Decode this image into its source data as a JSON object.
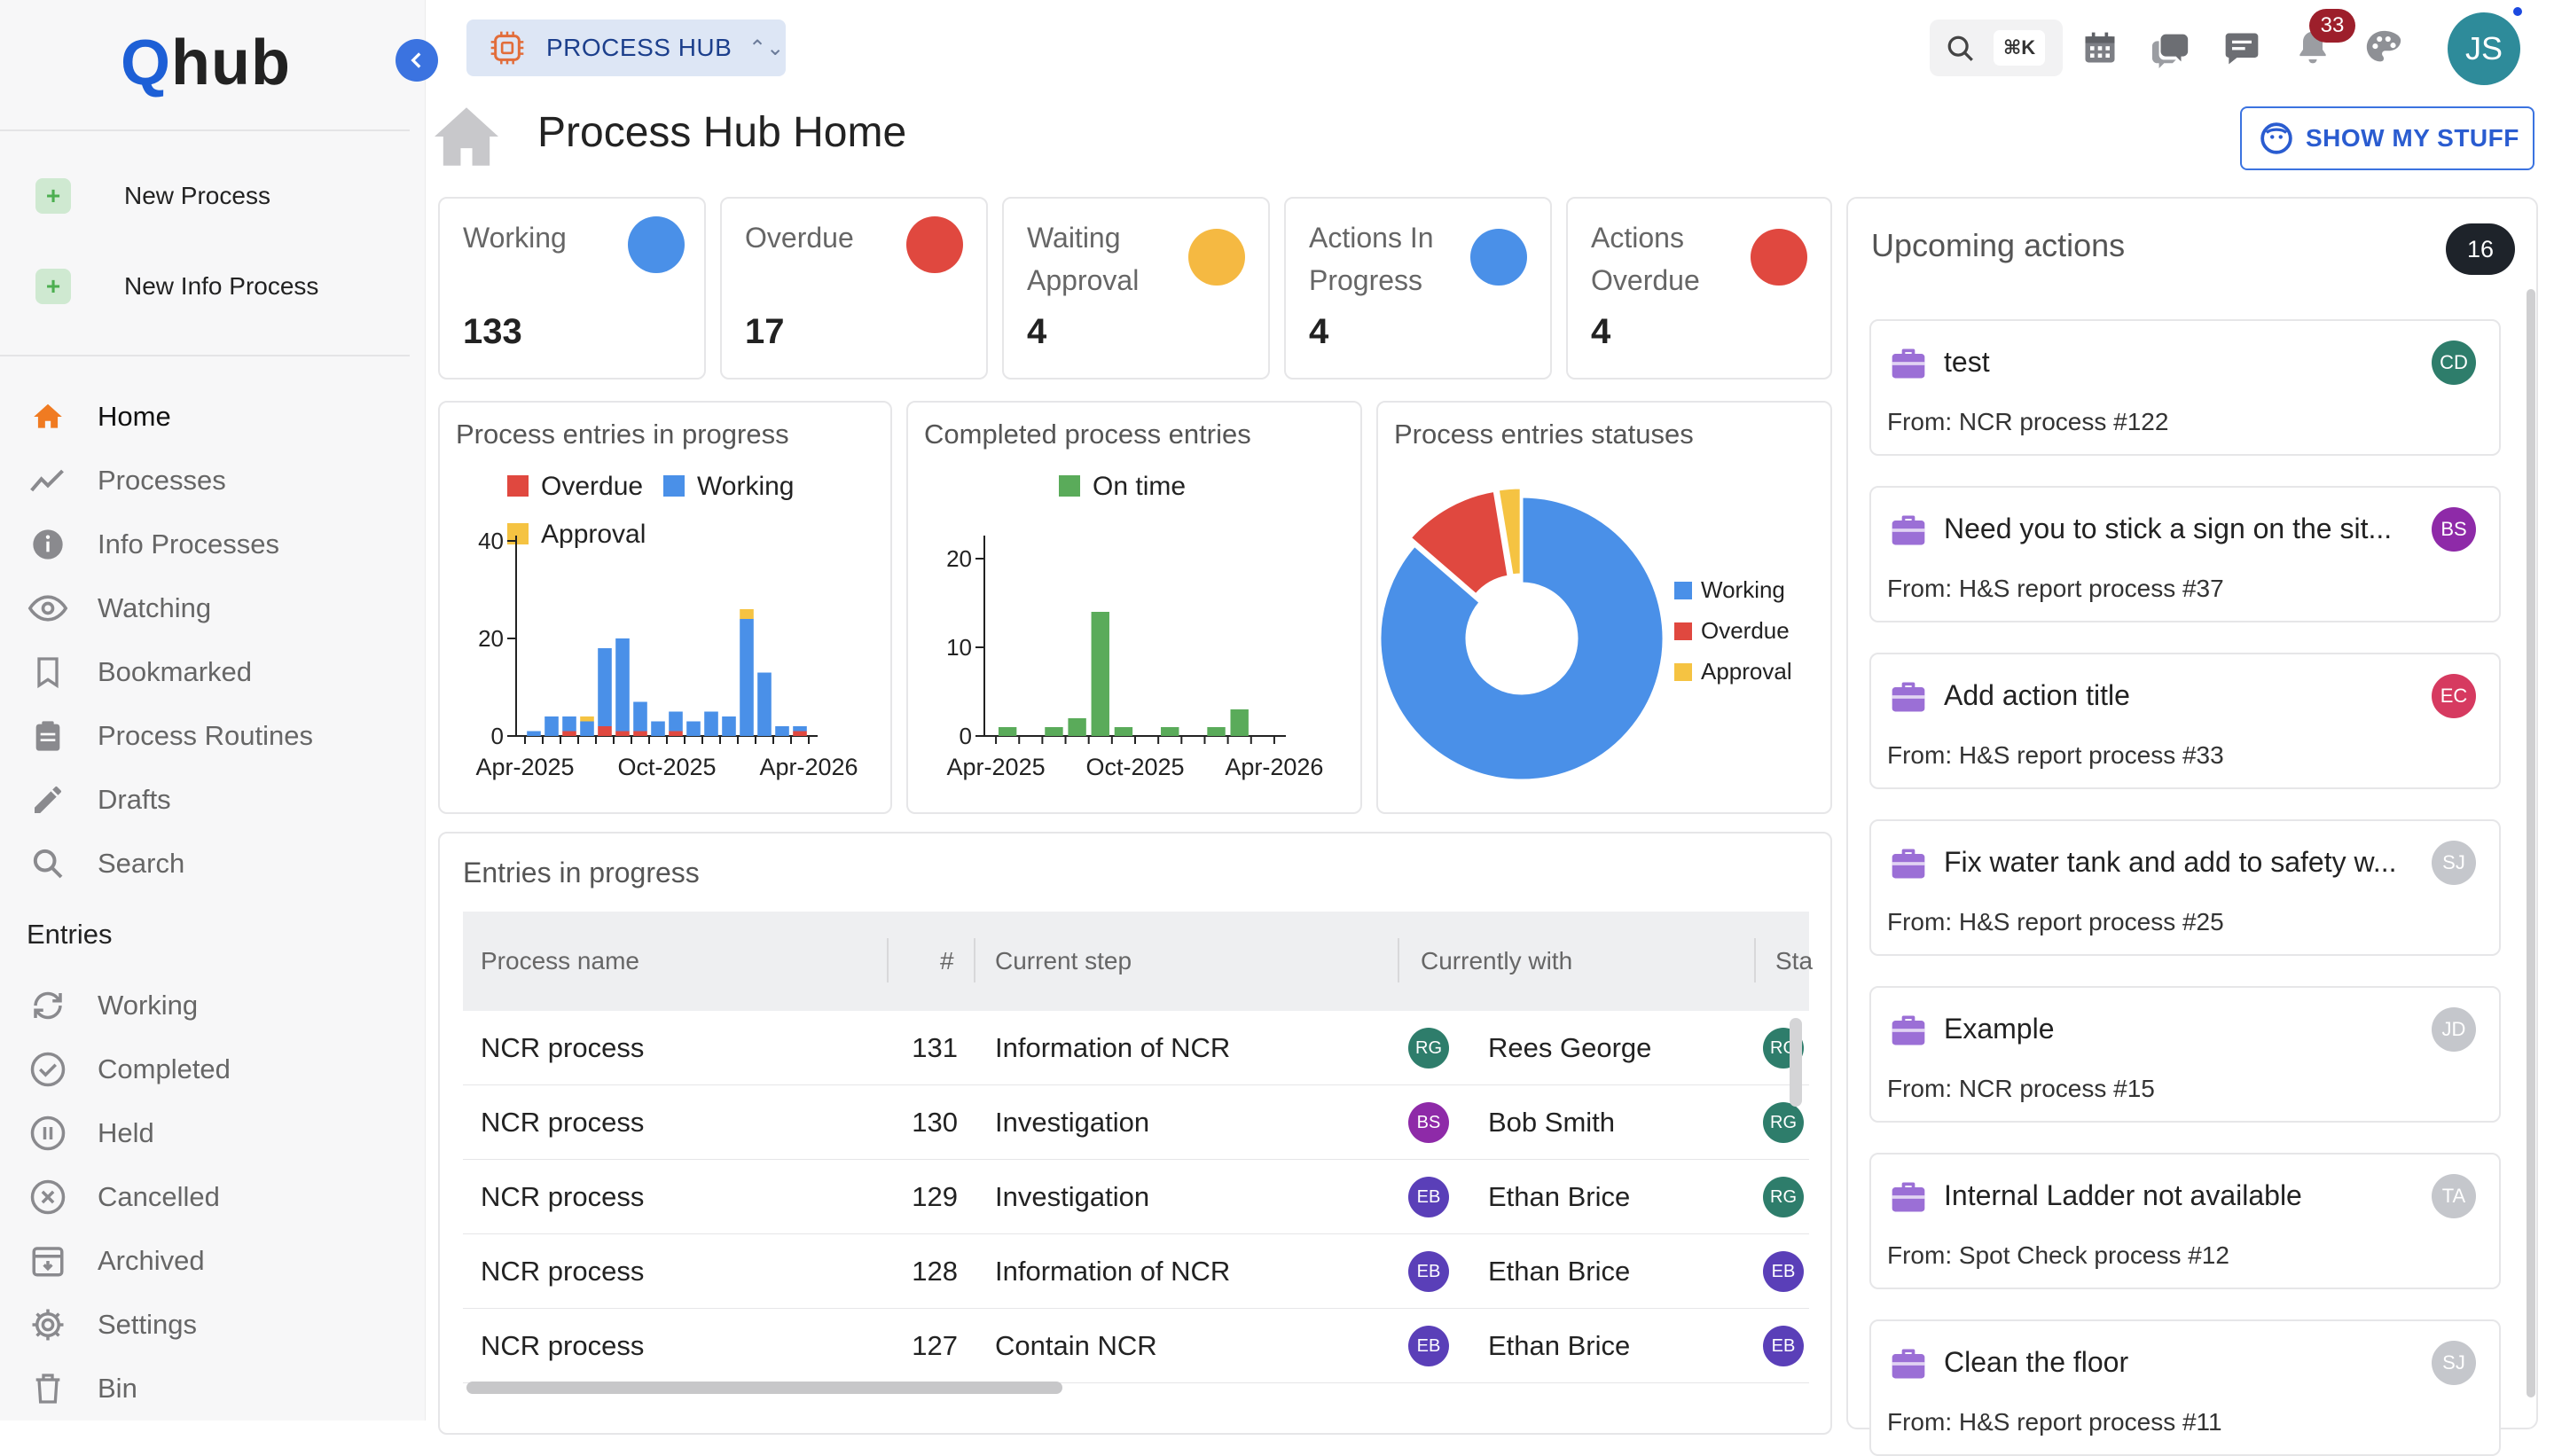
{
  "brand": {
    "logo_q": "Q",
    "logo_rest": "hub"
  },
  "sidebar": {
    "new_items": [
      {
        "label": "New Process"
      },
      {
        "label": "New Info Process"
      }
    ],
    "nav": [
      {
        "label": "Home",
        "icon": "home-icon"
      },
      {
        "label": "Processes",
        "icon": "trend-icon"
      },
      {
        "label": "Info Processes",
        "icon": "info-icon"
      },
      {
        "label": "Watching",
        "icon": "eye-icon"
      },
      {
        "label": "Bookmarked",
        "icon": "bookmark-icon"
      },
      {
        "label": "Process Routines",
        "icon": "clipboard-icon"
      },
      {
        "label": "Drafts",
        "icon": "pencil-icon"
      },
      {
        "label": "Search",
        "icon": "search-icon"
      }
    ],
    "entries_title": "Entries",
    "entries": [
      {
        "label": "Working",
        "icon": "sync-icon"
      },
      {
        "label": "Completed",
        "icon": "check-circle-icon"
      },
      {
        "label": "Held",
        "icon": "pause-circle-icon"
      },
      {
        "label": "Cancelled",
        "icon": "cancel-circle-icon"
      },
      {
        "label": "Archived",
        "icon": "archive-icon"
      },
      {
        "label": "Settings",
        "icon": "gear-icon"
      },
      {
        "label": "Bin",
        "icon": "trash-icon"
      }
    ]
  },
  "topbar": {
    "hub_label": "PROCESS HUB",
    "search_shortcut": "⌘K",
    "notification_count": "33",
    "user_initials": "JS"
  },
  "page": {
    "title": "Process Hub Home",
    "show_my_stuff": "SHOW MY STUFF"
  },
  "stats": [
    {
      "label": "Working",
      "value": "133",
      "color": "#4a90e8"
    },
    {
      "label": "Overdue",
      "value": "17",
      "color": "#e0483f"
    },
    {
      "label": "Waiting Approval",
      "value": "4",
      "color": "#f5b942"
    },
    {
      "label": "Actions In Progress",
      "value": "4",
      "color": "#4a90e8"
    },
    {
      "label": "Actions Overdue",
      "value": "4",
      "color": "#e0483f"
    }
  ],
  "chart_data": [
    {
      "type": "bar",
      "title": "Process entries in progress",
      "stacked": true,
      "legend": [
        "Overdue",
        "Working",
        "Approval"
      ],
      "colors": [
        "#e0483f",
        "#4a90e8",
        "#f5c342"
      ],
      "x_tick_labels": [
        "Apr-2025",
        "Oct-2025",
        "Apr-2026"
      ],
      "y_ticks": [
        0,
        20,
        40
      ],
      "ylim": [
        0,
        40
      ],
      "series": [
        {
          "name": "Overdue",
          "values": [
            0,
            0,
            1,
            0,
            2,
            1,
            1,
            0,
            1,
            0,
            0,
            0,
            0,
            0,
            0,
            1
          ]
        },
        {
          "name": "Working",
          "values": [
            1,
            4,
            3,
            3,
            16,
            19,
            6,
            3,
            4,
            3,
            5,
            4,
            24,
            13,
            2,
            1
          ]
        },
        {
          "name": "Approval",
          "values": [
            0,
            0,
            0,
            1,
            0,
            0,
            0,
            0,
            0,
            0,
            0,
            0,
            2,
            0,
            0,
            0
          ]
        }
      ]
    },
    {
      "type": "bar",
      "title": "Completed process entries",
      "legend": [
        "On time"
      ],
      "colors": [
        "#5aab5a"
      ],
      "x_tick_labels": [
        "Apr-2025",
        "Oct-2025",
        "Apr-2026"
      ],
      "y_ticks": [
        0,
        10,
        20
      ],
      "ylim": [
        0,
        22
      ],
      "series": [
        {
          "name": "On time",
          "values": [
            1,
            0,
            1,
            2,
            14,
            1,
            0,
            1,
            0,
            1,
            3,
            0
          ]
        }
      ]
    },
    {
      "type": "pie",
      "title": "Process entries statuses",
      "donut": true,
      "categories": [
        "Working",
        "Overdue",
        "Approval"
      ],
      "values": [
        133,
        17,
        4
      ],
      "colors": [
        "#4a90e8",
        "#e0483f",
        "#f5c342"
      ]
    }
  ],
  "upcoming": {
    "title": "Upcoming actions",
    "count": "16",
    "items": [
      {
        "title": "test",
        "from": "From: NCR process #122",
        "initials": "CD",
        "color": "#2e7d6b"
      },
      {
        "title": "Need you to stick a sign on the sit...",
        "from": "From: H&S report process #37",
        "initials": "BS",
        "color": "#8e2aa8"
      },
      {
        "title": "Add action title",
        "from": "From: H&S report process #33",
        "initials": "EC",
        "color": "#d63a60"
      },
      {
        "title": "Fix water tank and add to safety w...",
        "from": "From: H&S report process #25",
        "initials": "SJ",
        "color": "#c5c7cc"
      },
      {
        "title": "Example",
        "from": "From: NCR process #15",
        "initials": "JD",
        "color": "#c5c7cc"
      },
      {
        "title": "Internal Ladder not available",
        "from": "From: Spot Check process #12",
        "initials": "TA",
        "color": "#c5c7cc"
      },
      {
        "title": "Clean the floor",
        "from": "From: H&S report process #11",
        "initials": "SJ",
        "color": "#c5c7cc"
      }
    ]
  },
  "entries_table": {
    "title": "Entries in progress",
    "columns": [
      "Process name",
      "#",
      "Current step",
      "Currently with",
      "Sta"
    ],
    "rows": [
      {
        "name": "NCR process",
        "num": "131",
        "step": "Information of NCR",
        "with_initials": "RG",
        "with_name": "Rees George",
        "with_color": "#2e7d6b",
        "status_initials": "RG",
        "status_color": "#2e7d6b"
      },
      {
        "name": "NCR process",
        "num": "130",
        "step": "Investigation",
        "with_initials": "BS",
        "with_name": "Bob Smith",
        "with_color": "#8e2aa8",
        "status_initials": "RG",
        "status_color": "#2e7d6b"
      },
      {
        "name": "NCR process",
        "num": "129",
        "step": "Investigation",
        "with_initials": "EB",
        "with_name": "Ethan Brice",
        "with_color": "#5a3fb8",
        "status_initials": "RG",
        "status_color": "#2e7d6b"
      },
      {
        "name": "NCR process",
        "num": "128",
        "step": "Information of NCR",
        "with_initials": "EB",
        "with_name": "Ethan Brice",
        "with_color": "#5a3fb8",
        "status_initials": "EB",
        "status_color": "#5a3fb8"
      },
      {
        "name": "NCR process",
        "num": "127",
        "step": "Contain NCR",
        "with_initials": "EB",
        "with_name": "Ethan Brice",
        "with_color": "#5a3fb8",
        "status_initials": "EB",
        "status_color": "#5a3fb8"
      }
    ]
  }
}
